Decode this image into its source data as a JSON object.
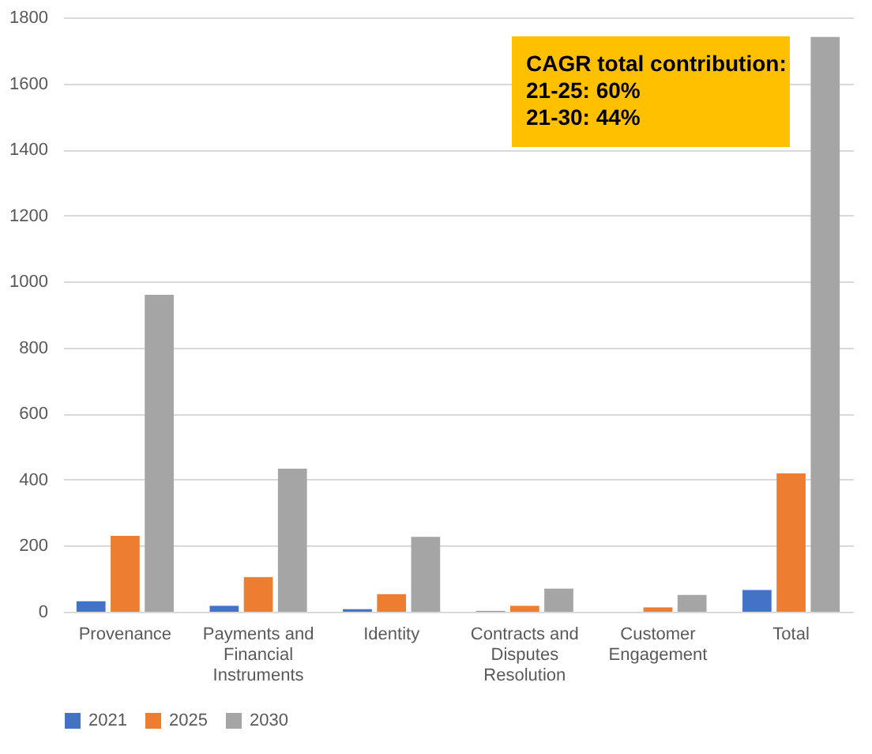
{
  "chart_data": {
    "type": "bar",
    "categories": [
      "Provenance",
      "Payments and Financial Instruments",
      "Identity",
      "Contracts and Disputes Resolution",
      "Customer Engagement",
      "Total"
    ],
    "series": [
      {
        "name": "2021",
        "color": "#4472c4",
        "values": [
          32,
          18,
          8,
          2,
          null,
          66
        ]
      },
      {
        "name": "2025",
        "color": "#ed7d31",
        "values": [
          230,
          105,
          53,
          18,
          13,
          419
        ]
      },
      {
        "name": "2030",
        "color": "#a5a5a5",
        "values": [
          960,
          433,
          227,
          70,
          51,
          1741
        ]
      }
    ],
    "ylim": [
      0,
      1800
    ],
    "yticks": [
      0,
      200,
      400,
      600,
      800,
      1000,
      1200,
      1400,
      1600,
      1800
    ],
    "grid": "y",
    "legend": "bottom",
    "annotations": [
      "CAGR total contribution:\n21-25: 60%\n21-30: 44%"
    ]
  }
}
